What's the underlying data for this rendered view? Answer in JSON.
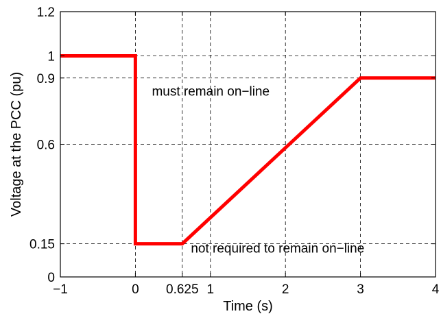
{
  "chart_data": {
    "type": "line",
    "xlabel": "Time (s)",
    "ylabel": "Voltage at the PCC (pu)",
    "xlim": [
      -1,
      4
    ],
    "ylim": [
      0,
      1.2
    ],
    "xticks": [
      -1,
      0,
      0.625,
      1,
      2,
      3,
      4
    ],
    "xtick_labels": [
      "−1",
      "0",
      "0.625",
      "1",
      "2",
      "3",
      "4"
    ],
    "yticks": [
      0,
      0.15,
      0.6,
      0.9,
      1,
      1.2
    ],
    "ytick_labels": [
      "0",
      "0.15",
      "0.6",
      "0.9",
      "1",
      "1.2"
    ],
    "grid": "dashed",
    "series": [
      {
        "color": "#ff0000",
        "x": [
          -1,
          0,
          0,
          0.625,
          3,
          4
        ],
        "y": [
          1,
          1,
          0.15,
          0.15,
          0.9,
          0.9
        ]
      }
    ],
    "annotations": [
      {
        "text": "must remain on−line",
        "x": 0.22,
        "y": 0.82
      },
      {
        "text": "not required to remain on−line",
        "x": 0.74,
        "y": 0.11
      }
    ]
  }
}
